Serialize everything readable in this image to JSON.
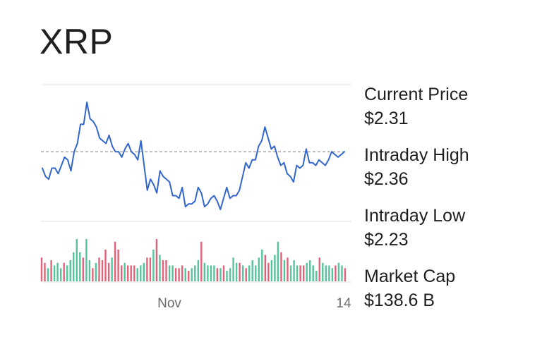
{
  "title": "XRP",
  "stats": [
    {
      "label": "Current Price",
      "value": "$2.31"
    },
    {
      "label": "Intraday High",
      "value": "$2.36"
    },
    {
      "label": "Intraday Low",
      "value": "$2.23"
    },
    {
      "label": "Market Cap",
      "value": "$138.6 B"
    }
  ],
  "colors": {
    "line": "#3366cc",
    "volume_up": "#56c49a",
    "volume_down": "#e06377",
    "reference": "#8a8a8a",
    "grid": "#e3e3e3"
  },
  "chart_data": {
    "type": "line",
    "x_tick_labels": [
      "Nov",
      "14"
    ],
    "series": [
      {
        "values": [
          2.25,
          2.22,
          2.21,
          2.25,
          2.25,
          2.23,
          2.26,
          2.29,
          2.28,
          2.24,
          2.31,
          2.34,
          2.41,
          2.41,
          2.49,
          2.43,
          2.42,
          2.4,
          2.36,
          2.35,
          2.34,
          2.37,
          2.33,
          2.31,
          2.31,
          2.29,
          2.32,
          2.34,
          2.31,
          2.3,
          2.28,
          2.35,
          2.26,
          2.17,
          2.21,
          2.19,
          2.16,
          2.24,
          2.22,
          2.21,
          2.2,
          2.15,
          2.15,
          2.14,
          2.18,
          2.11,
          2.12,
          2.12,
          2.13,
          2.18,
          2.16,
          2.11,
          2.12,
          2.14,
          2.15,
          2.13,
          2.1,
          2.14,
          2.18,
          2.14,
          2.15,
          2.15,
          2.17,
          2.22,
          2.27,
          2.25,
          2.28,
          2.28,
          2.33,
          2.35,
          2.4,
          2.36,
          2.32,
          2.33,
          2.29,
          2.26,
          2.27,
          2.23,
          2.22,
          2.2,
          2.26,
          2.25,
          2.26,
          2.32,
          2.27,
          2.27,
          2.26,
          2.28,
          2.27,
          2.26,
          2.28,
          2.31,
          2.3,
          2.29,
          2.3,
          2.31
        ]
      }
    ],
    "reference_line": 2.31,
    "volume": [
      0.45,
      0.35,
      0.25,
      0.4,
      0.3,
      0.35,
      0.25,
      0.35,
      0.3,
      0.4,
      0.55,
      0.8,
      0.55,
      0.45,
      0.8,
      0.4,
      0.25,
      0.35,
      0.45,
      0.4,
      0.6,
      0.35,
      0.45,
      0.75,
      0.6,
      0.3,
      0.35,
      0.3,
      0.3,
      0.3,
      0.25,
      0.3,
      0.35,
      0.45,
      0.45,
      0.6,
      0.8,
      0.5,
      0.4,
      0.4,
      0.3,
      0.3,
      0.25,
      0.25,
      0.3,
      0.25,
      0.2,
      0.25,
      0.3,
      0.4,
      0.75,
      0.35,
      0.3,
      0.3,
      0.3,
      0.25,
      0.25,
      0.3,
      0.2,
      0.25,
      0.45,
      0.35,
      0.35,
      0.3,
      0.25,
      0.3,
      0.4,
      0.3,
      0.45,
      0.6,
      0.5,
      0.35,
      0.4,
      0.5,
      0.75,
      0.55,
      0.4,
      0.45,
      0.3,
      0.4,
      0.3,
      0.3,
      0.3,
      0.35,
      0.4,
      0.3,
      0.2,
      0.45,
      0.35,
      0.3,
      0.3,
      0.25,
      0.3,
      0.35,
      0.3,
      0.25
    ],
    "volume_direction": [
      "down",
      "down",
      "up",
      "down",
      "up",
      "up",
      "up",
      "down",
      "up",
      "up",
      "up",
      "up",
      "up",
      "down",
      "up",
      "up",
      "down",
      "up",
      "down",
      "down",
      "down",
      "down",
      "up",
      "down",
      "down",
      "down",
      "up",
      "down",
      "down",
      "down",
      "up",
      "up",
      "up",
      "down",
      "down",
      "up",
      "down",
      "up",
      "down",
      "down",
      "up",
      "up",
      "down",
      "down",
      "down",
      "up",
      "down",
      "up",
      "up",
      "up",
      "down",
      "up",
      "up",
      "up",
      "up",
      "down",
      "up",
      "down",
      "up",
      "up",
      "up",
      "up",
      "down",
      "up",
      "down",
      "up",
      "up",
      "up",
      "up",
      "up",
      "down",
      "down",
      "up",
      "up",
      "up",
      "down",
      "up",
      "down",
      "up",
      "up",
      "up",
      "down",
      "down",
      "up",
      "up",
      "up",
      "up",
      "down",
      "up",
      "up",
      "up",
      "up",
      "down",
      "up",
      "up",
      "down"
    ],
    "grid": true
  }
}
